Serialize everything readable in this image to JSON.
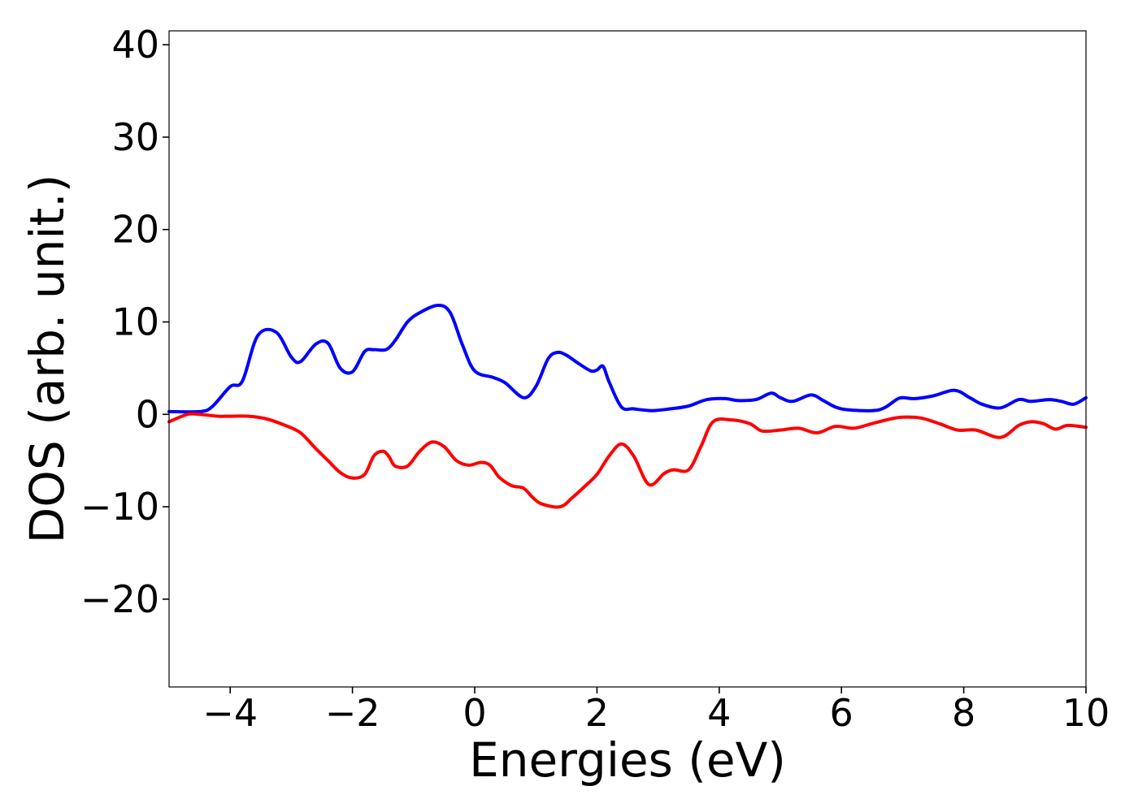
{
  "chart_data": {
    "type": "line",
    "title": "",
    "xlabel": "Energies (eV)",
    "ylabel": "DOS (arb. unit.)",
    "xlim": [
      -5,
      10
    ],
    "ylim": [
      -29.5,
      41.5
    ],
    "xticks": [
      -4,
      -2,
      0,
      2,
      4,
      6,
      8,
      10
    ],
    "xtick_labels": [
      "−4",
      "−2",
      "0",
      "2",
      "4",
      "6",
      "8",
      "10"
    ],
    "yticks": [
      -20,
      -10,
      0,
      10,
      20,
      30,
      40
    ],
    "ytick_labels": [
      "−20",
      "−10",
      "0",
      "10",
      "20",
      "30",
      "40"
    ],
    "grid": false,
    "series": [
      {
        "color": "#0000ff",
        "x": [
          -5.0,
          -4.5,
          -4.3,
          -4.0,
          -3.8,
          -3.55,
          -3.25,
          -3.0,
          -2.85,
          -2.6,
          -2.4,
          -2.2,
          -2.0,
          -1.8,
          -1.65,
          -1.45,
          -1.3,
          -1.1,
          -0.9,
          -0.6,
          -0.4,
          -0.2,
          0.0,
          0.3,
          0.5,
          0.8,
          1.0,
          1.2,
          1.35,
          1.5,
          1.7,
          1.9,
          2.0,
          2.1,
          2.2,
          2.4,
          2.6,
          2.9,
          3.2,
          3.5,
          3.8,
          4.1,
          4.3,
          4.6,
          4.85,
          5.0,
          5.2,
          5.5,
          5.7,
          5.9,
          6.1,
          6.5,
          6.7,
          6.9,
          7.0,
          7.2,
          7.5,
          7.85,
          8.1,
          8.3,
          8.6,
          8.9,
          9.1,
          9.4,
          9.6,
          9.8,
          10.0
        ],
        "y": [
          0.3,
          0.3,
          0.8,
          3.0,
          3.6,
          8.5,
          8.9,
          6.2,
          5.7,
          7.6,
          7.7,
          5.0,
          4.6,
          6.8,
          7.0,
          7.0,
          8.0,
          10.0,
          11.0,
          11.8,
          11.0,
          7.5,
          4.7,
          4.0,
          3.4,
          1.8,
          3.0,
          6.0,
          6.7,
          6.4,
          5.5,
          4.7,
          4.8,
          5.2,
          3.5,
          0.8,
          0.6,
          0.4,
          0.6,
          0.9,
          1.6,
          1.7,
          1.5,
          1.6,
          2.3,
          1.8,
          1.4,
          2.1,
          1.5,
          0.8,
          0.5,
          0.4,
          0.7,
          1.6,
          1.8,
          1.7,
          2.0,
          2.6,
          1.8,
          1.1,
          0.7,
          1.6,
          1.4,
          1.6,
          1.4,
          1.1,
          1.8
        ]
      },
      {
        "color": "#ff0000",
        "x": [
          -5.0,
          -4.7,
          -4.5,
          -4.2,
          -4.0,
          -3.7,
          -3.4,
          -3.1,
          -2.85,
          -2.6,
          -2.4,
          -2.2,
          -2.0,
          -1.8,
          -1.65,
          -1.5,
          -1.4,
          -1.3,
          -1.1,
          -0.9,
          -0.7,
          -0.5,
          -0.3,
          -0.1,
          0.1,
          0.25,
          0.4,
          0.6,
          0.8,
          0.95,
          1.1,
          1.4,
          1.6,
          1.8,
          2.0,
          2.2,
          2.4,
          2.6,
          2.85,
          3.1,
          3.25,
          3.5,
          3.7,
          3.9,
          4.2,
          4.5,
          4.7,
          5.0,
          5.3,
          5.6,
          5.9,
          6.2,
          6.5,
          6.8,
          7.0,
          7.3,
          7.6,
          7.9,
          8.2,
          8.6,
          8.9,
          9.1,
          9.3,
          9.5,
          9.7,
          10.0
        ],
        "y": [
          -0.8,
          0.0,
          0.0,
          -0.2,
          -0.2,
          -0.2,
          -0.5,
          -1.2,
          -2.0,
          -3.7,
          -5.0,
          -6.3,
          -6.9,
          -6.5,
          -4.5,
          -4.0,
          -4.6,
          -5.6,
          -5.6,
          -4.0,
          -3.0,
          -3.5,
          -5.0,
          -5.5,
          -5.2,
          -5.5,
          -6.8,
          -7.7,
          -8.0,
          -9.0,
          -9.7,
          -10.0,
          -9.0,
          -7.8,
          -6.5,
          -4.5,
          -3.2,
          -4.5,
          -7.6,
          -6.4,
          -6.0,
          -6.0,
          -3.5,
          -0.8,
          -0.6,
          -1.0,
          -1.8,
          -1.7,
          -1.5,
          -2.0,
          -1.3,
          -1.5,
          -1.0,
          -0.5,
          -0.3,
          -0.4,
          -1.0,
          -1.7,
          -1.7,
          -2.5,
          -1.2,
          -0.8,
          -1.0,
          -1.6,
          -1.2,
          -1.4
        ]
      }
    ]
  }
}
